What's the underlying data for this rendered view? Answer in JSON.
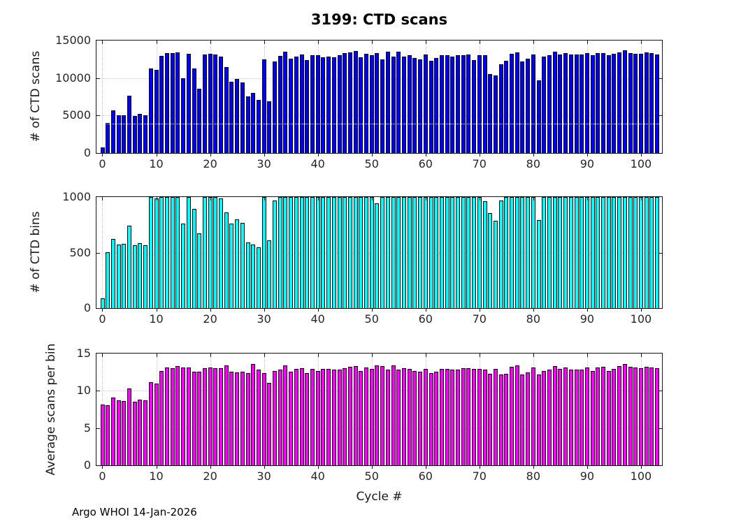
{
  "figure": {
    "footer": "Argo WHOI 14-Jan-2026"
  },
  "x_axis": {
    "label": "Cycle #",
    "range": [
      -1.1,
      103.9
    ],
    "ticks": [
      0,
      10,
      20,
      30,
      40,
      50,
      60,
      70,
      80,
      90,
      100
    ]
  },
  "categories": [
    0,
    1,
    2,
    3,
    4,
    5,
    6,
    7,
    8,
    9,
    10,
    11,
    12,
    13,
    14,
    15,
    16,
    17,
    18,
    19,
    20,
    21,
    22,
    23,
    24,
    25,
    26,
    27,
    28,
    29,
    30,
    31,
    32,
    33,
    34,
    35,
    36,
    37,
    38,
    39,
    40,
    41,
    42,
    43,
    44,
    45,
    46,
    47,
    48,
    49,
    50,
    51,
    52,
    53,
    54,
    55,
    56,
    57,
    58,
    59,
    60,
    61,
    62,
    63,
    64,
    65,
    66,
    67,
    68,
    69,
    70,
    71,
    72,
    73,
    74,
    75,
    76,
    77,
    78,
    79,
    80,
    81,
    82,
    83,
    84,
    85,
    86,
    87,
    88,
    89,
    90,
    91,
    92,
    93,
    94,
    95,
    96,
    97,
    98,
    99,
    100,
    101,
    102,
    103
  ],
  "chart_data": [
    {
      "type": "bar",
      "title": "3199: CTD scans",
      "ylabel": "# of CTD scans",
      "xlabel": "Cycle #",
      "ylim": [
        0,
        15000
      ],
      "yticks": [
        0,
        5000,
        10000,
        15000
      ],
      "ytick_labels": [
        "0",
        "5000",
        "10000",
        "15000"
      ],
      "grid": true,
      "legend": "none",
      "bar_color": "#0000ff",
      "edge_color": "#000000",
      "overlay_dotted_line": {
        "y": 3950,
        "color": "#ffffff"
      },
      "values": [
        700,
        4000,
        5650,
        5050,
        5050,
        7600,
        4900,
        5200,
        5000,
        11250,
        11050,
        12950,
        13300,
        13350,
        13400,
        10000,
        13250,
        11250,
        8600,
        13100,
        13200,
        13100,
        12900,
        11500,
        9500,
        9900,
        9450,
        7500,
        8000,
        7100,
        12500,
        6900,
        12200,
        12950,
        13550,
        12600,
        12900,
        13100,
        12400,
        13000,
        13000,
        12800,
        12900,
        12800,
        13000,
        13350,
        13450,
        13600,
        12800,
        13250,
        13000,
        13350,
        12500,
        13500,
        12900,
        13500,
        12900,
        13050,
        12650,
        12500,
        13100,
        12300,
        12650,
        13050,
        13000,
        12900,
        13000,
        13050,
        13100,
        12350,
        13000,
        13000,
        10550,
        10350,
        11800,
        12300,
        13250,
        13400,
        12250,
        12550,
        13150,
        9700,
        12900,
        13000,
        13500,
        13150,
        13350,
        13100,
        13100,
        13150,
        13300,
        13050,
        13300,
        13300,
        13000,
        13200,
        13400,
        13650,
        13300,
        13250,
        13200,
        13400,
        13300,
        13150
      ]
    },
    {
      "type": "bar",
      "ylabel": "# of CTD bins",
      "xlabel": "Cycle #",
      "ylim": [
        0,
        1000
      ],
      "yticks": [
        0,
        500,
        1000
      ],
      "ytick_labels": [
        "0",
        "500",
        "1000"
      ],
      "grid": true,
      "legend": "none",
      "bar_color": "#00ffff",
      "edge_color": "#000000",
      "values": [
        90,
        500,
        620,
        575,
        580,
        745,
        565,
        585,
        565,
        1000,
        990,
        1000,
        1000,
        1000,
        1000,
        760,
        1000,
        890,
        670,
        1000,
        1000,
        1000,
        990,
        860,
        760,
        800,
        765,
        590,
        575,
        550,
        1000,
        610,
        970,
        1000,
        1000,
        1000,
        1000,
        1000,
        1000,
        1000,
        1000,
        1000,
        1000,
        1000,
        1000,
        1000,
        1000,
        1000,
        1000,
        1000,
        1000,
        945,
        1000,
        1000,
        1000,
        1000,
        1000,
        1000,
        1000,
        1000,
        1000,
        1000,
        1000,
        1000,
        1000,
        1000,
        1000,
        1000,
        1000,
        1000,
        1000,
        965,
        855,
        785,
        970,
        1000,
        1000,
        1000,
        1000,
        1000,
        1000,
        790,
        1000,
        1000,
        1000,
        1000,
        1000,
        1000,
        1000,
        1000,
        1000,
        1000,
        1000,
        1000,
        1000,
        1000,
        1000,
        1000,
        1000,
        1000,
        1000,
        1000,
        1000,
        1000
      ]
    },
    {
      "type": "bar",
      "ylabel": "Average scans per bin",
      "xlabel": "Cycle #",
      "ylim": [
        0,
        15
      ],
      "yticks": [
        0,
        5,
        10,
        15
      ],
      "ytick_labels": [
        "0",
        "5",
        "10",
        "15"
      ],
      "grid": true,
      "legend": "none",
      "bar_color": "#ff00ff",
      "edge_color": "#000000",
      "values": [
        8.2,
        8.1,
        9.1,
        8.7,
        8.6,
        10.3,
        8.5,
        8.8,
        8.7,
        11.2,
        11.0,
        12.7,
        13.1,
        13.0,
        13.3,
        13.1,
        13.1,
        12.6,
        12.6,
        13.0,
        13.1,
        13.0,
        13.0,
        13.4,
        12.6,
        12.5,
        12.6,
        12.4,
        13.6,
        12.8,
        12.4,
        11.1,
        12.7,
        12.8,
        13.4,
        12.6,
        12.9,
        13.0,
        12.4,
        12.9,
        12.7,
        12.9,
        12.9,
        12.8,
        12.8,
        13.0,
        13.2,
        13.3,
        12.7,
        13.1,
        12.9,
        13.4,
        13.3,
        12.8,
        13.4,
        12.8,
        13.0,
        12.9,
        12.7,
        12.6,
        12.9,
        12.4,
        12.6,
        12.9,
        12.9,
        12.8,
        12.8,
        13.0,
        13.0,
        12.9,
        12.9,
        12.8,
        12.3,
        12.9,
        12.2,
        12.3,
        13.2,
        13.4,
        12.2,
        12.5,
        13.1,
        12.2,
        12.7,
        12.8,
        13.3,
        12.9,
        13.1,
        12.8,
        12.8,
        12.8,
        13.1,
        12.7,
        13.1,
        13.2,
        12.7,
        12.9,
        13.3,
        13.6,
        13.2,
        13.1,
        13.0,
        13.2,
        13.1,
        13.0
      ]
    }
  ]
}
